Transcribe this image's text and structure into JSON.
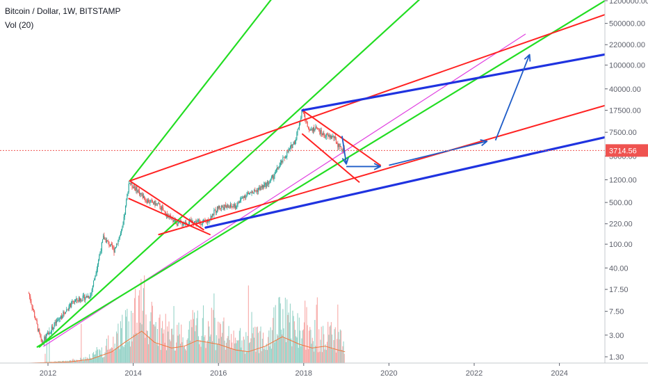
{
  "legend": {
    "title": "Bitcoin / Dollar, 1W, BITSTAMP",
    "vol": "Vol (20)"
  },
  "last_price": "3714.56",
  "colors": {
    "background": "#ffffff",
    "axis": "#5d606b",
    "grid_axis_border": "#c5c8ce",
    "candle_up": "#26a69a",
    "candle_down": "#ef5350",
    "vol_up": "#97d3c8",
    "vol_down": "#f7a9a7",
    "vol_ma": "#f0763b",
    "price_label_bg": "#ef5350",
    "green_line": "#22dd22",
    "red_line": "#ff2222",
    "blue_line": "#1f33e0",
    "magenta_line": "#e040e0",
    "arrow": "#1e5cc8"
  },
  "chart_data": {
    "type": "candlestick",
    "title": "Bitcoin / Dollar, 1W, BITSTAMP",
    "y_scale": "log",
    "y_ticks": [
      "1200000.00",
      "500000.00",
      "220000.00",
      "100000.00",
      "40000.00",
      "17500.00",
      "7500.00",
      "3000.00",
      "1200.00",
      "500.00",
      "220.00",
      "100.00",
      "40.00",
      "17.50",
      "7.50",
      "3.00",
      "1.30"
    ],
    "x_ticks": [
      "2012",
      "2014",
      "2016",
      "2018",
      "2020",
      "2022",
      "2024"
    ],
    "price_path": [
      [
        2011.55,
        15
      ],
      [
        2011.85,
        2.2
      ],
      [
        2012.2,
        5
      ],
      [
        2012.6,
        11
      ],
      [
        2013.0,
        14
      ],
      [
        2013.3,
        130
      ],
      [
        2013.55,
        80
      ],
      [
        2013.75,
        180
      ],
      [
        2013.9,
        1100
      ],
      [
        2014.1,
        800
      ],
      [
        2014.3,
        550
      ],
      [
        2014.6,
        450
      ],
      [
        2014.8,
        300
      ],
      [
        2015.05,
        220
      ],
      [
        2015.4,
        240
      ],
      [
        2015.7,
        230
      ],
      [
        2016.0,
        420
      ],
      [
        2016.4,
        430
      ],
      [
        2016.6,
        650
      ],
      [
        2016.9,
        800
      ],
      [
        2017.2,
        1100
      ],
      [
        2017.5,
        2500
      ],
      [
        2017.8,
        5500
      ],
      [
        2017.97,
        17500
      ],
      [
        2018.1,
        9000
      ],
      [
        2018.3,
        8500
      ],
      [
        2018.5,
        6500
      ],
      [
        2018.7,
        6300
      ],
      [
        2018.85,
        4000
      ],
      [
        2018.97,
        3714.56
      ]
    ],
    "volume_ma_path": [
      [
        2011.55,
        0
      ],
      [
        2012.5,
        0.03
      ],
      [
        2013.0,
        0.1
      ],
      [
        2013.5,
        0.3
      ],
      [
        2013.8,
        0.55
      ],
      [
        2014.2,
        0.85
      ],
      [
        2014.5,
        0.55
      ],
      [
        2014.9,
        0.4
      ],
      [
        2015.2,
        0.45
      ],
      [
        2015.5,
        0.6
      ],
      [
        2016.0,
        0.5
      ],
      [
        2016.4,
        0.35
      ],
      [
        2016.7,
        0.3
      ],
      [
        2017.1,
        0.45
      ],
      [
        2017.5,
        0.7
      ],
      [
        2017.9,
        0.5
      ],
      [
        2018.2,
        0.4
      ],
      [
        2018.5,
        0.45
      ],
      [
        2018.8,
        0.35
      ],
      [
        2018.97,
        0.3
      ]
    ],
    "drawings": {
      "green_lines": [
        [
          [
            2011.8,
            1.9
          ],
          [
            2021.2,
            2600000
          ]
        ],
        [
          [
            2013.92,
            1150
          ],
          [
            2017.65,
            3000000
          ]
        ],
        [
          [
            2011.75,
            1.9
          ],
          [
            2025.8,
            2500000
          ]
        ]
      ],
      "red_lines": [
        [
          [
            2013.92,
            1150
          ],
          [
            2026.8,
            1900000
          ]
        ],
        [
          [
            2014.6,
            145
          ],
          [
            2026.8,
            48000
          ]
        ],
        [
          [
            2013.92,
            1150
          ],
          [
            2015.65,
            175
          ]
        ],
        [
          [
            2017.97,
            17500
          ],
          [
            2019.8,
            2100
          ]
        ],
        [
          [
            2013.9,
            580
          ],
          [
            2015.8,
            145
          ]
        ],
        [
          [
            2017.97,
            7000
          ],
          [
            2019.3,
            1100
          ]
        ]
      ],
      "blue_lines": [
        [
          [
            2015.7,
            190
          ],
          [
            2025.4,
            7000
          ]
        ],
        [
          [
            2017.97,
            17500
          ],
          [
            2026.0,
            200000
          ]
        ]
      ],
      "magenta_line": [
        [
          2011.9,
          1.95
        ],
        [
          2023.2,
          330000
        ]
      ],
      "arrows": [
        [
          [
            2018.9,
            6500
          ],
          [
            2019.0,
            2200
          ]
        ],
        [
          [
            2019.0,
            2000
          ],
          [
            2019.8,
            2000
          ]
        ],
        [
          [
            2020.0,
            2100
          ],
          [
            2022.3,
            5300
          ]
        ],
        [
          [
            2022.5,
            5500
          ],
          [
            2023.3,
            150000
          ]
        ]
      ]
    }
  }
}
